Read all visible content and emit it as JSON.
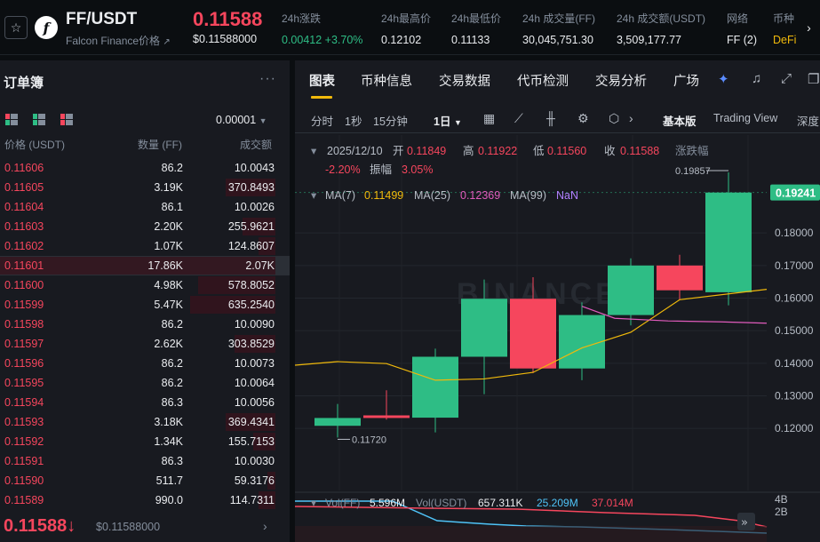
{
  "header": {
    "star_icon": "star-icon",
    "logo_letter": "f",
    "pair": "FF/USDT",
    "pair_name": "Falcon Finance价格",
    "last_price": "0.11588",
    "last_price_usd": "$0.11588000",
    "stats": [
      {
        "label": "24h涨跌",
        "value": "0.00412 +3.70%",
        "tone": "green"
      },
      {
        "label": "24h最高价",
        "value": "0.12102",
        "tone": ""
      },
      {
        "label": "24h最低价",
        "value": "0.11133",
        "tone": ""
      },
      {
        "label": "24h 成交量(FF)",
        "value": "30,045,751.30",
        "tone": ""
      },
      {
        "label": "24h 成交额(USDT)",
        "value": "3,509,177.77",
        "tone": ""
      },
      {
        "label": "网络",
        "value": "FF (2)",
        "tone": ""
      },
      {
        "label": "币种",
        "value": "DeFi",
        "tone": "yellow"
      }
    ],
    "next_icon": "chevron-right-icon"
  },
  "orderbook": {
    "title": "订单簿",
    "more": "···",
    "precision": "0.00001",
    "col_price": "价格 (USDT)",
    "col_qty": "数量 (FF)",
    "col_total": "成交额",
    "rows": [
      {
        "price": "0.11606",
        "qty": "86.2",
        "total": "10.0043",
        "depth": 0.0
      },
      {
        "price": "0.11605",
        "qty": "3.19K",
        "total": "370.8493",
        "depth": 0.18
      },
      {
        "price": "0.11604",
        "qty": "86.1",
        "total": "10.0026",
        "depth": 0.0
      },
      {
        "price": "0.11603",
        "qty": "2.20K",
        "total": "255.9621",
        "depth": 0.12
      },
      {
        "price": "0.11602",
        "qty": "1.07K",
        "total": "124.8607",
        "depth": 0.06
      },
      {
        "price": "0.11601",
        "qty": "17.86K",
        "total": "2.07K",
        "depth": 1.0
      },
      {
        "price": "0.11600",
        "qty": "4.98K",
        "total": "578.8052",
        "depth": 0.28
      },
      {
        "price": "0.11599",
        "qty": "5.47K",
        "total": "635.2540",
        "depth": 0.31
      },
      {
        "price": "0.11598",
        "qty": "86.2",
        "total": "10.0090",
        "depth": 0.0
      },
      {
        "price": "0.11597",
        "qty": "2.62K",
        "total": "303.8529",
        "depth": 0.15
      },
      {
        "price": "0.11596",
        "qty": "86.2",
        "total": "10.0073",
        "depth": 0.0
      },
      {
        "price": "0.11595",
        "qty": "86.2",
        "total": "10.0064",
        "depth": 0.0
      },
      {
        "price": "0.11594",
        "qty": "86.3",
        "total": "10.0056",
        "depth": 0.0
      },
      {
        "price": "0.11593",
        "qty": "3.18K",
        "total": "369.4341",
        "depth": 0.18
      },
      {
        "price": "0.11592",
        "qty": "1.34K",
        "total": "155.7153",
        "depth": 0.08
      },
      {
        "price": "0.11591",
        "qty": "86.3",
        "total": "10.0030",
        "depth": 0.0
      },
      {
        "price": "0.11590",
        "qty": "511.7",
        "total": "59.3176",
        "depth": 0.03
      },
      {
        "price": "0.11589",
        "qty": "990.0",
        "total": "114.7311",
        "depth": 0.06
      }
    ],
    "footer_price": "0.11588",
    "footer_arrow": "↓",
    "footer_usd": "$0.11588000",
    "footer_icon": "chevron-right-icon"
  },
  "chart_panel": {
    "tabs": [
      "图表",
      "币种信息",
      "交易数据",
      "代币检测",
      "交易分析",
      "广场"
    ],
    "active_tab": 0,
    "intervals": [
      "分时",
      "1秒",
      "15分钟",
      "1日"
    ],
    "selected_interval": "1日",
    "views": [
      "基本版",
      "Trading View",
      "深度"
    ],
    "selected_view": "基本版"
  },
  "chart_data": {
    "type": "candlestick",
    "legend": {
      "date": "2025/12/10",
      "open_label": "开",
      "open": "0.11849",
      "high_label": "高",
      "high": "0.11922",
      "low_label": "低",
      "low": "0.11560",
      "close_label": "收",
      "close": "0.11588",
      "change_label": "涨跌幅",
      "change": "-2.20%",
      "amplitude_label": "振幅",
      "amplitude": "3.05%"
    },
    "ma_legend": [
      {
        "name": "MA(7)",
        "value": "0.11499",
        "color": "#f0b90b"
      },
      {
        "name": "MA(25)",
        "value": "0.12369",
        "color": "#e05bbc"
      },
      {
        "name": "MA(99)",
        "value": "NaN",
        "color": "#b080ff"
      }
    ],
    "y_ticks": [
      0.12,
      0.13,
      0.14,
      0.15,
      0.16,
      0.17,
      0.18
    ],
    "ylim": [
      0.1135,
      0.2035
    ],
    "current_price_label": "0.19241",
    "candles": [
      {
        "open": 0.1208,
        "high": 0.1275,
        "low": 0.1172,
        "close": 0.1232
      },
      {
        "open": 0.124,
        "high": 0.1317,
        "low": 0.1227,
        "close": 0.1232
      },
      {
        "open": 0.1233,
        "high": 0.1445,
        "low": 0.1188,
        "close": 0.142
      },
      {
        "open": 0.142,
        "high": 0.1657,
        "low": 0.1305,
        "close": 0.1598
      },
      {
        "open": 0.1598,
        "high": 0.1664,
        "low": 0.137,
        "close": 0.1384
      },
      {
        "open": 0.1384,
        "high": 0.1587,
        "low": 0.1348,
        "close": 0.1548
      },
      {
        "open": 0.1548,
        "high": 0.1722,
        "low": 0.1516,
        "close": 0.17
      },
      {
        "open": 0.17,
        "high": 0.1733,
        "low": 0.1596,
        "close": 0.1624
      },
      {
        "open": 0.1618,
        "high": 0.1986,
        "low": 0.1578,
        "close": 0.1924
      }
    ],
    "ma7": [
      0.1394,
      0.1405,
      0.1399,
      0.1348,
      0.1352,
      0.1372,
      0.1447,
      0.1495,
      0.1595,
      0.1627
    ],
    "ma25": [
      0.1575,
      0.1538,
      0.153,
      0.1527,
      0.1523
    ],
    "high_marker": "0.19857",
    "low_marker": "0.11720",
    "volume": {
      "label_ff": "Vol(FF)",
      "value_ff": "5.596M",
      "label_usdt": "Vol(USDT)",
      "value_usdt": "657.311K",
      "ma1": "25.209M",
      "ma2": "37.014M",
      "y_ticks": [
        "4B",
        "2B"
      ]
    },
    "watermark": "BINANCE"
  }
}
